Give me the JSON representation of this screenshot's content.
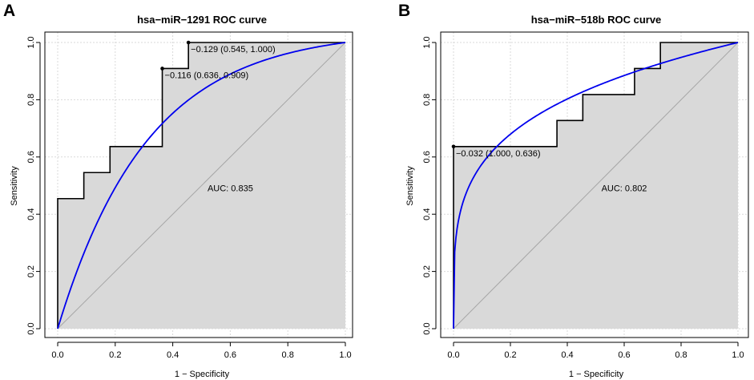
{
  "chart_data": [
    {
      "panel": "A",
      "type": "line",
      "title": "hsa−miR−1291 ROC curve",
      "xlabel": "1 − Specificity",
      "ylabel": "Sensitivity",
      "xlim": [
        0,
        1
      ],
      "ylim": [
        0,
        1
      ],
      "x_ticks": [
        0.0,
        0.2,
        0.4,
        0.6,
        0.8,
        1.0
      ],
      "y_ticks": [
        0.0,
        0.2,
        0.4,
        0.6,
        0.8,
        1.0
      ],
      "x_tick_labels": [
        "0.0",
        "0.2",
        "0.4",
        "0.6",
        "0.8",
        "1.0"
      ],
      "y_tick_labels": [
        "0.0",
        "0.2",
        "0.4",
        "0.6",
        "0.8",
        "1.0"
      ],
      "grid": true,
      "auc_label": "AUC: 0.835",
      "auc_position": [
        0.6,
        0.48
      ],
      "series": [
        {
          "name": "empirical ROC",
          "color": "#000000",
          "x": [
            0,
            0,
            0.0909,
            0.0909,
            0.1818,
            0.1818,
            0.3636,
            0.3636,
            0.4545,
            0.4545,
            1.0
          ],
          "y": [
            0,
            0.4545,
            0.4545,
            0.5455,
            0.5455,
            0.6364,
            0.6364,
            0.9091,
            0.9091,
            1.0,
            1.0
          ]
        },
        {
          "name": "smoothed ROC",
          "color": "#0000ee",
          "curve_k": 3.2
        }
      ],
      "thresholds": [
        {
          "label": "−0.129 (0.545, 1.000)",
          "x": 0.4545,
          "y": 1.0
        },
        {
          "label": "−0.116 (0.636, 0.909)",
          "x": 0.3636,
          "y": 0.9091
        }
      ]
    },
    {
      "panel": "B",
      "type": "line",
      "title": "hsa−miR−518b ROC curve",
      "xlabel": "1 − Specificity",
      "ylabel": "Sensitivity",
      "xlim": [
        0,
        1
      ],
      "ylim": [
        0,
        1
      ],
      "x_ticks": [
        0.0,
        0.2,
        0.4,
        0.6,
        0.8,
        1.0
      ],
      "y_ticks": [
        0.0,
        0.2,
        0.4,
        0.6,
        0.8,
        1.0
      ],
      "x_tick_labels": [
        "0.0",
        "0.2",
        "0.4",
        "0.6",
        "0.8",
        "1.0"
      ],
      "y_tick_labels": [
        "0.0",
        "0.2",
        "0.4",
        "0.6",
        "0.8",
        "1.0"
      ],
      "grid": true,
      "auc_label": "AUC: 0.802",
      "auc_position": [
        0.6,
        0.48
      ],
      "series": [
        {
          "name": "empirical ROC",
          "color": "#000000",
          "x": [
            0,
            0,
            0.3636,
            0.3636,
            0.4545,
            0.4545,
            0.6364,
            0.6364,
            0.7273,
            0.7273,
            1.0
          ],
          "y": [
            0,
            0.6364,
            0.6364,
            0.7273,
            0.7273,
            0.8182,
            0.8182,
            0.9091,
            0.9091,
            1.0,
            1.0
          ]
        },
        {
          "name": "smoothed ROC",
          "color": "#0000ee",
          "curve_p": 0.24
        }
      ],
      "thresholds": [
        {
          "label": "−0.032 (1.000, 0.636)",
          "x": 0.0,
          "y": 0.6364
        }
      ]
    }
  ]
}
